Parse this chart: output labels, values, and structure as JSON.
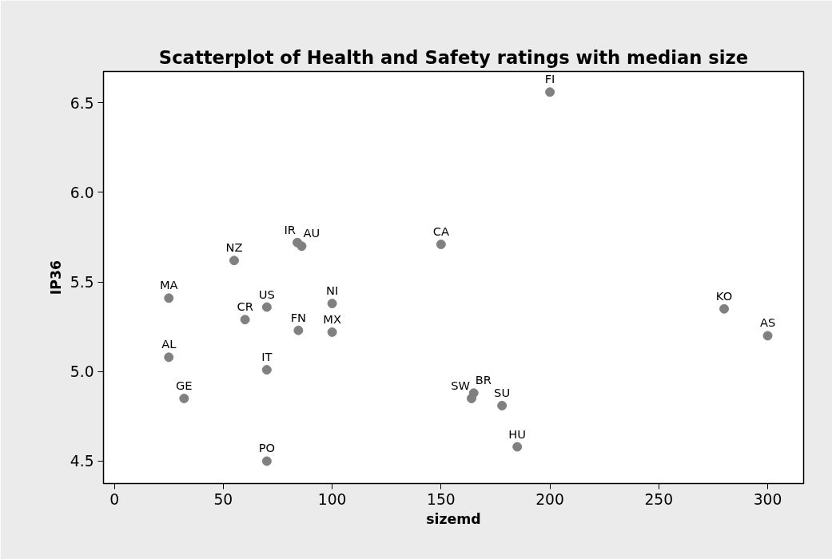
{
  "chart_data": {
    "type": "scatter",
    "title": "Scatterplot of Health and Safety ratings with median size",
    "xlabel": "sizemd",
    "ylabel": "IP36",
    "x": [
      200,
      84,
      86,
      150,
      55,
      25,
      70,
      60,
      100,
      84.5,
      100,
      25,
      70,
      32,
      70,
      280,
      300,
      165,
      164,
      178,
      185
    ],
    "series": [
      {
        "color": "#808080",
        "values": [
          6.56,
          5.72,
          5.7,
          5.71,
          5.62,
          5.41,
          5.36,
          5.29,
          5.38,
          5.23,
          5.22,
          5.08,
          5.01,
          4.85,
          4.5,
          5.35,
          5.2,
          4.88,
          4.85,
          4.81,
          4.58
        ]
      }
    ],
    "annotations": [
      {
        "text": "FI",
        "x": 200,
        "y": 6.56
      },
      {
        "text": "IR",
        "x": 84,
        "y": 5.72
      },
      {
        "text": "AU",
        "x": 86,
        "y": 5.7
      },
      {
        "text": "CA",
        "x": 150,
        "y": 5.71
      },
      {
        "text": "NZ",
        "x": 55,
        "y": 5.62
      },
      {
        "text": "MA",
        "x": 25,
        "y": 5.41
      },
      {
        "text": "US",
        "x": 70,
        "y": 5.36
      },
      {
        "text": "CR",
        "x": 60,
        "y": 5.29
      },
      {
        "text": "NI",
        "x": 100,
        "y": 5.38
      },
      {
        "text": "FN",
        "x": 84.5,
        "y": 5.23
      },
      {
        "text": "MX",
        "x": 100,
        "y": 5.22
      },
      {
        "text": "AL",
        "x": 25,
        "y": 5.08
      },
      {
        "text": "IT",
        "x": 70,
        "y": 5.01
      },
      {
        "text": "GE",
        "x": 32,
        "y": 4.85
      },
      {
        "text": "PO",
        "x": 70,
        "y": 4.5
      },
      {
        "text": "KO",
        "x": 280,
        "y": 5.35
      },
      {
        "text": "AS",
        "x": 300,
        "y": 5.2
      },
      {
        "text": "BR",
        "x": 165,
        "y": 4.88
      },
      {
        "text": "SW",
        "x": 164,
        "y": 4.85
      },
      {
        "text": "SU",
        "x": 178,
        "y": 4.81
      },
      {
        "text": "HU",
        "x": 185,
        "y": 4.58
      }
    ],
    "xlim": [
      -5,
      316.5
    ],
    "ylim": [
      4.375,
      6.675
    ],
    "xticks": [
      0,
      50,
      100,
      150,
      200,
      250,
      300
    ],
    "yticks": [
      4.5,
      {
        "value": 5,
        "label": "5.0"
      },
      5.5,
      {
        "value": 6,
        "label": "6.0"
      },
      6.5
    ],
    "grid": false,
    "marker": "circle"
  }
}
